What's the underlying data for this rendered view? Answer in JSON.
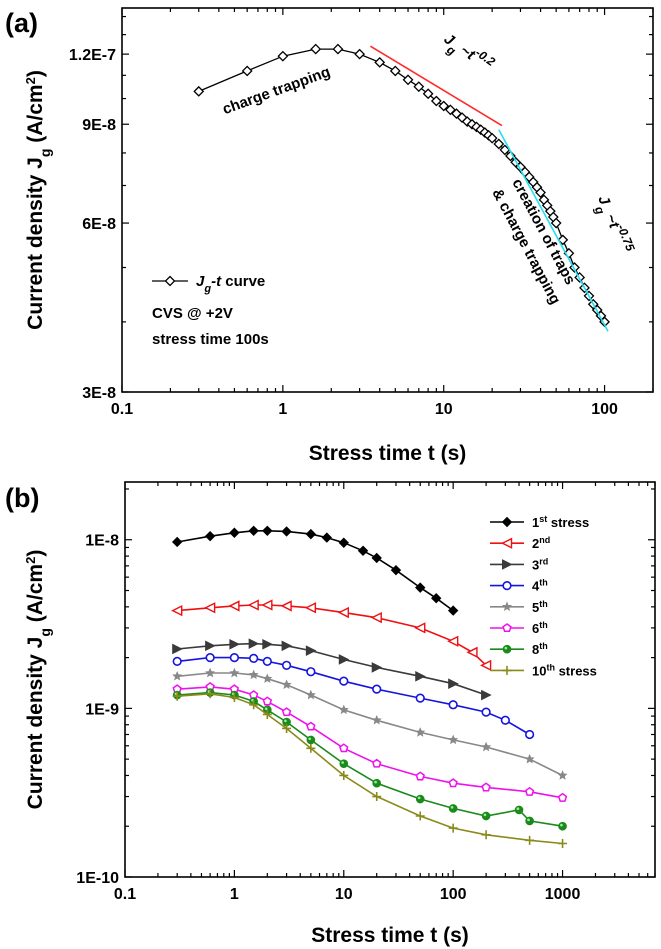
{
  "chart_data": [
    {
      "panel_label": "(a)",
      "type": "line",
      "xlabel": "Stress time t  (s)",
      "ylabel": "Current density J_g (A/cm²)",
      "x_scale": "log",
      "y_scale": "log",
      "xlim": [
        0.1,
        200
      ],
      "ylim": [
        3e-08,
        1.45e-07
      ],
      "x_ticks": [
        "0.1",
        "1",
        "10",
        "100"
      ],
      "y_ticks": [
        "3E-8",
        "6E-8",
        "9E-8",
        "1.2E-7"
      ],
      "series": [
        {
          "name": "J_g-t curve",
          "marker": "open-diamond",
          "color": "#000000",
          "x": [
            0.3,
            0.6,
            1.0,
            1.6,
            2.2,
            3.0,
            4,
            5,
            6,
            7,
            8,
            9,
            10,
            11,
            12,
            13,
            14,
            15,
            16,
            17,
            18,
            19,
            20,
            22,
            24,
            26,
            28,
            30,
            32,
            34,
            36,
            38,
            40,
            42,
            44,
            46,
            48,
            50,
            55,
            60,
            65,
            70,
            75,
            80,
            85,
            90,
            95,
            100
          ],
          "y": [
            1.03e-07,
            1.12e-07,
            1.19e-07,
            1.225e-07,
            1.225e-07,
            1.2e-07,
            1.16e-07,
            1.12e-07,
            1.08e-07,
            1.05e-07,
            1.02e-07,
            9.9e-08,
            9.7e-08,
            9.55e-08,
            9.4e-08,
            9.25e-08,
            9.1e-08,
            9e-08,
            8.9e-08,
            8.8e-08,
            8.7e-08,
            8.6e-08,
            8.5e-08,
            8.3e-08,
            8.1e-08,
            7.9e-08,
            7.7e-08,
            7.55e-08,
            7.4e-08,
            7.25e-08,
            7.1e-08,
            6.95e-08,
            6.8e-08,
            6.6e-08,
            6.45e-08,
            6.3e-08,
            6.15e-08,
            6e-08,
            5.6e-08,
            5.3e-08,
            5e-08,
            4.8e-08,
            4.6e-08,
            4.45e-08,
            4.3e-08,
            4.2e-08,
            4.1e-08,
            4e-08
          ]
        }
      ],
      "fit_lines": [
        {
          "label": "J_g ~t^-0.2",
          "color": "#ff2a2a",
          "x": [
            3.5,
            23
          ],
          "y": [
            1.24e-07,
            8.95e-08
          ]
        },
        {
          "label": "J_g ~t^-0.75",
          "color": "#22e0f0",
          "x": [
            22,
            105
          ],
          "y": [
            8.8e-08,
            3.85e-08
          ]
        }
      ],
      "annotations": [
        "charge trapping",
        "creation of traps",
        "& charge trapping",
        "J_g ~t^-0.2",
        "J_g ~t^-0.75"
      ],
      "legend": {
        "entries": [
          "J_g-t curve"
        ],
        "notes": [
          "CVS @ +2V",
          "stress time 100s"
        ],
        "position": "bottom-left"
      }
    },
    {
      "panel_label": "(b)",
      "type": "line",
      "xlabel": "Stress time t  (s)",
      "ylabel": "Current density J_g (A/cm²)",
      "x_scale": "log",
      "y_scale": "log",
      "xlim": [
        0.1,
        7000
      ],
      "ylim": [
        1e-10,
        2.2e-08
      ],
      "x_ticks": [
        "0.1",
        "1",
        "10",
        "100",
        "1000"
      ],
      "y_ticks": [
        "1E-10",
        "1E-9",
        "1E-8"
      ],
      "series": [
        {
          "name": "1st stress",
          "marker": "filled-diamond",
          "color": "#000000",
          "x": [
            0.3,
            0.6,
            1,
            1.5,
            2,
            3,
            5,
            7,
            10,
            15,
            20,
            30,
            50,
            70,
            100
          ],
          "y": [
            9.7e-09,
            1.05e-08,
            1.1e-08,
            1.13e-08,
            1.13e-08,
            1.12e-08,
            1.08e-08,
            1.03e-08,
            9.6e-09,
            8.6e-09,
            7.8e-09,
            6.6e-09,
            5.2e-09,
            4.5e-09,
            3.8e-09
          ]
        },
        {
          "name": "2nd",
          "marker": "open-triangle-left",
          "color": "#ee1111",
          "x": [
            0.3,
            0.6,
            1,
            1.5,
            2,
            3,
            5,
            10,
            20,
            50,
            100,
            150,
            200
          ],
          "y": [
            3.8e-09,
            3.95e-09,
            4.05e-09,
            4.1e-09,
            4.1e-09,
            4.05e-09,
            3.95e-09,
            3.7e-09,
            3.45e-09,
            3e-09,
            2.5e-09,
            2.15e-09,
            1.8e-09
          ]
        },
        {
          "name": "3rd",
          "marker": "filled-triangle-right",
          "color": "#3a3a3a",
          "x": [
            0.3,
            0.6,
            1,
            1.5,
            2,
            3,
            5,
            10,
            20,
            50,
            100,
            200
          ],
          "y": [
            2.25e-09,
            2.35e-09,
            2.4e-09,
            2.42e-09,
            2.4e-09,
            2.35e-09,
            2.2e-09,
            1.95e-09,
            1.75e-09,
            1.55e-09,
            1.4e-09,
            1.2e-09
          ]
        },
        {
          "name": "4th",
          "marker": "open-circle",
          "color": "#1515dd",
          "x": [
            0.3,
            0.6,
            1,
            1.5,
            2,
            3,
            5,
            10,
            20,
            50,
            100,
            200,
            300,
            500
          ],
          "y": [
            1.9e-09,
            2e-09,
            2e-09,
            1.98e-09,
            1.9e-09,
            1.8e-09,
            1.65e-09,
            1.45e-09,
            1.3e-09,
            1.15e-09,
            1.05e-09,
            9.5e-10,
            8.5e-10,
            7e-10
          ]
        },
        {
          "name": "5th",
          "marker": "filled-star",
          "color": "#888888",
          "x": [
            0.3,
            0.6,
            1,
            1.5,
            2,
            3,
            5,
            10,
            20,
            50,
            100,
            200,
            500,
            1000
          ],
          "y": [
            1.55e-09,
            1.62e-09,
            1.62e-09,
            1.58e-09,
            1.5e-09,
            1.38e-09,
            1.2e-09,
            9.8e-10,
            8.5e-10,
            7.2e-10,
            6.5e-10,
            5.9e-10,
            5e-10,
            4e-10
          ]
        },
        {
          "name": "6th",
          "marker": "open-pentagon",
          "color": "#ee11ee",
          "x": [
            0.3,
            0.6,
            1,
            1.5,
            2,
            3,
            5,
            10,
            20,
            50,
            100,
            200,
            500,
            1000
          ],
          "y": [
            1.3e-09,
            1.34e-09,
            1.3e-09,
            1.2e-09,
            1.1e-09,
            9.5e-10,
            7.8e-10,
            5.8e-10,
            4.7e-10,
            3.95e-10,
            3.6e-10,
            3.4e-10,
            3.2e-10,
            2.95e-10
          ]
        },
        {
          "name": "8th",
          "marker": "half-filled-circle",
          "color": "#1a8a1a",
          "x": [
            0.3,
            0.6,
            1,
            1.5,
            2,
            3,
            5,
            10,
            20,
            50,
            100,
            200,
            400,
            500,
            1000
          ],
          "y": [
            1.2e-09,
            1.24e-09,
            1.2e-09,
            1.1e-09,
            9.8e-10,
            8.3e-10,
            6.5e-10,
            4.7e-10,
            3.6e-10,
            2.9e-10,
            2.55e-10,
            2.3e-10,
            2.5e-10,
            2.15e-10,
            2e-10
          ]
        },
        {
          "name": "10th stress",
          "marker": "plus",
          "color": "#8a8a1a",
          "x": [
            0.3,
            0.6,
            1,
            1.5,
            2,
            3,
            5,
            10,
            20,
            50,
            100,
            200,
            500,
            1000
          ],
          "y": [
            1.18e-09,
            1.22e-09,
            1.16e-09,
            1.05e-09,
            9.2e-10,
            7.6e-10,
            5.8e-10,
            4e-10,
            3e-10,
            2.3e-10,
            1.95e-10,
            1.78e-10,
            1.65e-10,
            1.58e-10
          ]
        }
      ],
      "legend": {
        "entries": [
          "1st stress",
          "2nd",
          "3rd",
          "4th",
          "5th",
          "6th",
          "8th",
          "10th stress"
        ],
        "position": "top-right"
      }
    }
  ]
}
